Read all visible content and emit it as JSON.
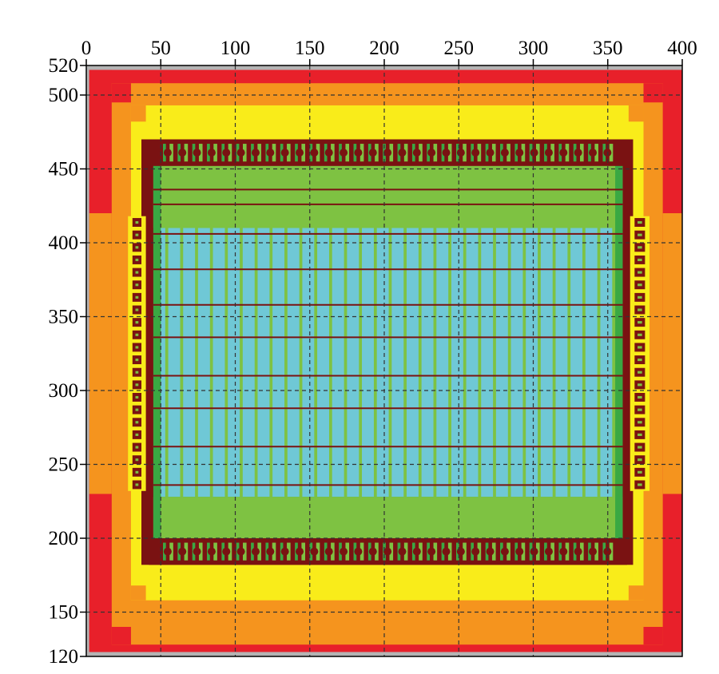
{
  "chart_data": {
    "type": "heatmap",
    "title": "",
    "xlabel": "",
    "ylabel": "",
    "xlim": [
      0,
      400
    ],
    "ylim": [
      120,
      520
    ],
    "x_ticks": [
      0,
      50,
      100,
      150,
      200,
      250,
      300,
      350,
      400
    ],
    "y_ticks": [
      120,
      150,
      200,
      250,
      300,
      350,
      400,
      450,
      500,
      520
    ],
    "x_axis_position": "top",
    "grid": true,
    "grid_style": "dashed",
    "legend": "none",
    "colors": {
      "background": "#b4b4b4",
      "red": "#e8202a",
      "orange": "#f5941e",
      "yellow": "#f9ec1a",
      "dark_red": "#7a1212",
      "green": "#3aa843",
      "light_green": "#7ec242",
      "cyan": "#6fc8d6",
      "grid": "#333333"
    },
    "regions": [
      {
        "level": "red",
        "x": [
          2,
          402
        ],
        "y": [
          123,
          517
        ]
      },
      {
        "level": "orange",
        "x": [
          17,
          387
        ],
        "y": [
          128,
          508
        ]
      },
      {
        "level": "yellow",
        "x": [
          30,
          374
        ],
        "y": [
          158,
          493
        ]
      },
      {
        "level": "dark_red",
        "x": [
          37,
          367
        ],
        "y": [
          182,
          470
        ]
      },
      {
        "level": "green",
        "x": [
          45,
          360
        ],
        "y": [
          187,
          460
        ]
      },
      {
        "level": "cyan",
        "x": [
          50,
          355
        ],
        "y": [
          228,
          410
        ]
      }
    ],
    "top_cell_row": {
      "y": [
        452,
        470
      ],
      "x": [
        50,
        355
      ],
      "count": 31,
      "color": "dark_red"
    },
    "bottom_cell_row": {
      "y": [
        182,
        200
      ],
      "x": [
        50,
        355
      ],
      "count": 31,
      "color": "dark_red"
    },
    "left_cell_column": {
      "x": [
        28,
        40
      ],
      "y": [
        232,
        418
      ],
      "count": 22,
      "color": "dark_red"
    },
    "right_cell_column": {
      "x": [
        365,
        378
      ],
      "y": [
        232,
        418
      ],
      "count": 22,
      "color": "dark_red"
    },
    "core_grid": {
      "x_pitch": 10,
      "y_pitch": 12.5,
      "x_range": [
        50,
        355
      ],
      "y_range": [
        228,
        410
      ],
      "horizontal_lines_y": [
        236,
        262,
        288,
        310,
        336,
        358,
        382,
        406,
        426,
        436
      ],
      "color": "#7a1212"
    }
  }
}
